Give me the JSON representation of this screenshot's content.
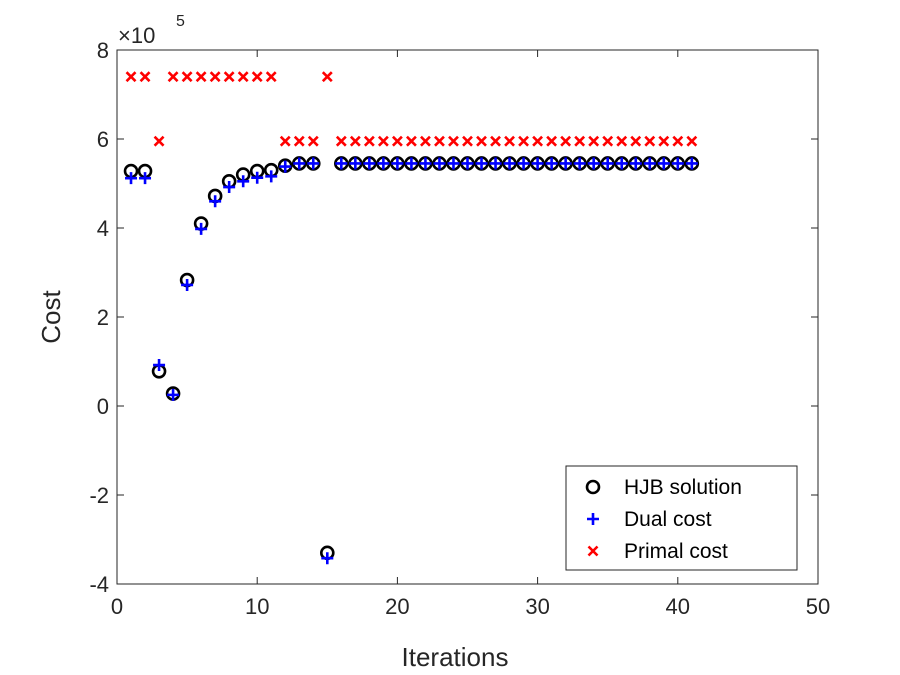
{
  "chart_data": {
    "type": "scatter",
    "title": "",
    "xlabel": "Iterations",
    "ylabel": "Cost",
    "xlim": [
      0,
      50
    ],
    "ylim": [
      -4,
      8
    ],
    "xticks": [
      "0",
      "10",
      "20",
      "30",
      "40",
      "50"
    ],
    "yticks": [
      "-4",
      "-2",
      "0",
      "2",
      "4",
      "6",
      "8"
    ],
    "y_multiplier": {
      "base": "×10",
      "exponent": "5"
    },
    "legend_position": "bottom-right",
    "grid": false,
    "series": [
      {
        "name": "HJB solution",
        "marker": "circle",
        "color": "#000000",
        "x": [
          1,
          2,
          3,
          4,
          5,
          6,
          7,
          8,
          9,
          10,
          11,
          12,
          13,
          14,
          15,
          16,
          17,
          18,
          19,
          20,
          21,
          22,
          23,
          24,
          25,
          26,
          27,
          28,
          29,
          30,
          31,
          32,
          33,
          34,
          35,
          36,
          37,
          38,
          39,
          40,
          41
        ],
        "y": [
          5.28,
          5.28,
          0.78,
          0.28,
          2.83,
          4.1,
          4.72,
          5.05,
          5.2,
          5.28,
          5.3,
          5.4,
          5.45,
          5.45,
          -3.3,
          5.45,
          5.45,
          5.45,
          5.45,
          5.45,
          5.45,
          5.45,
          5.45,
          5.45,
          5.45,
          5.45,
          5.45,
          5.45,
          5.45,
          5.45,
          5.45,
          5.45,
          5.45,
          5.45,
          5.45,
          5.45,
          5.45,
          5.45,
          5.45,
          5.45,
          5.45
        ]
      },
      {
        "name": "Dual cost",
        "marker": "plus",
        "color": "#0000ff",
        "x": [
          1,
          2,
          3,
          4,
          5,
          6,
          7,
          8,
          9,
          10,
          11,
          12,
          13,
          14,
          15,
          16,
          17,
          18,
          19,
          20,
          21,
          22,
          23,
          24,
          25,
          26,
          27,
          28,
          29,
          30,
          31,
          32,
          33,
          34,
          35,
          36,
          37,
          38,
          39,
          40,
          41
        ],
        "y": [
          5.12,
          5.12,
          0.92,
          0.25,
          2.72,
          3.98,
          4.6,
          4.92,
          5.05,
          5.13,
          5.16,
          5.38,
          5.45,
          5.45,
          -3.42,
          5.45,
          5.45,
          5.45,
          5.45,
          5.45,
          5.45,
          5.45,
          5.45,
          5.45,
          5.45,
          5.45,
          5.45,
          5.45,
          5.45,
          5.45,
          5.45,
          5.45,
          5.45,
          5.45,
          5.45,
          5.45,
          5.45,
          5.45,
          5.45,
          5.45,
          5.45
        ]
      },
      {
        "name": "Primal cost",
        "marker": "x",
        "color": "#ff0000",
        "x": [
          1,
          2,
          3,
          4,
          5,
          6,
          7,
          8,
          9,
          10,
          11,
          12,
          13,
          14,
          15,
          16,
          17,
          18,
          19,
          20,
          21,
          22,
          23,
          24,
          25,
          26,
          27,
          28,
          29,
          30,
          31,
          32,
          33,
          34,
          35,
          36,
          37,
          38,
          39,
          40,
          41
        ],
        "y": [
          7.4,
          7.4,
          5.95,
          7.4,
          7.4,
          7.4,
          7.4,
          7.4,
          7.4,
          7.4,
          7.4,
          5.95,
          5.95,
          5.95,
          7.4,
          5.95,
          5.95,
          5.95,
          5.95,
          5.95,
          5.95,
          5.95,
          5.95,
          5.95,
          5.95,
          5.95,
          5.95,
          5.95,
          5.95,
          5.95,
          5.95,
          5.95,
          5.95,
          5.95,
          5.95,
          5.95,
          5.95,
          5.95,
          5.95,
          5.95,
          5.95
        ]
      }
    ]
  }
}
